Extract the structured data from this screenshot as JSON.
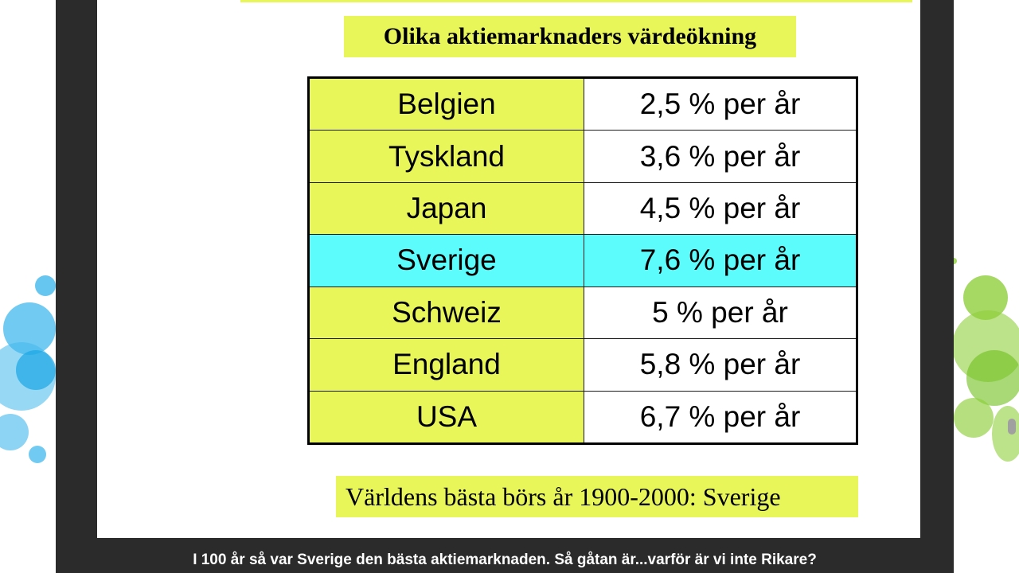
{
  "slide": {
    "title": "Olika aktiemarknaders värdeökning",
    "rows": [
      {
        "country": "Belgien",
        "rate": "2,5 % per år",
        "highlight": false
      },
      {
        "country": "Tyskland",
        "rate": "3,6 % per år",
        "highlight": false
      },
      {
        "country": "Japan",
        "rate": "4,5 % per år",
        "highlight": false
      },
      {
        "country": "Sverige",
        "rate": "7,6 % per år",
        "highlight": true
      },
      {
        "country": "Schweiz",
        "rate": "5 % per år",
        "highlight": false
      },
      {
        "country": "England",
        "rate": "5,8 % per år",
        "highlight": false
      },
      {
        "country": "USA",
        "rate": "6,7 % per år",
        "highlight": false
      }
    ],
    "footer": "Världens bästa börs år 1900-2000: Sverige"
  },
  "caption": "I 100 år så var Sverige den bästa aktiemarknaden. Så gåtan är...varför är vi inte Rikare?",
  "colors": {
    "yellow": "#e8f65a",
    "cyan": "#5cfcfc",
    "white": "#ffffff",
    "frame": "#2b2b2b",
    "blue_bubbles": "#41b8ec",
    "green_bubbles": "#8fcf3c"
  }
}
